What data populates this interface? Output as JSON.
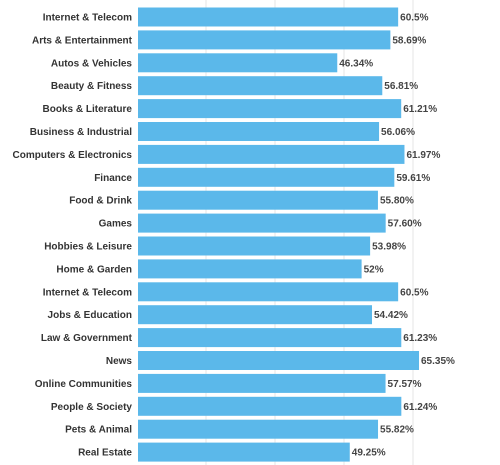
{
  "chart_data": {
    "type": "bar",
    "orientation": "horizontal",
    "categories": [
      "Internet & Telecom",
      "Arts & Entertainment",
      "Autos & Vehicles",
      "Beauty & Fitness",
      "Books & Literature",
      "Business & Industrial",
      "Computers & Electronics",
      "Finance",
      "Food & Drink",
      "Games",
      "Hobbies & Leisure",
      "Home & Garden",
      "Internet & Telecom",
      "Jobs & Education",
      "Law & Government",
      "News",
      "Online Communities",
      "People & Society",
      "Pets & Animal",
      "Real Estate"
    ],
    "values": [
      60.5,
      58.69,
      46.34,
      56.81,
      61.21,
      56.06,
      61.97,
      59.61,
      55.8,
      57.6,
      53.98,
      52,
      60.5,
      54.42,
      61.23,
      65.35,
      57.57,
      61.24,
      55.82,
      49.25
    ],
    "value_labels": [
      "60.5%",
      "58.69%",
      "46.34%",
      "56.81%",
      "61.21%",
      "56.06%",
      "61.97%",
      "59.61%",
      "55.80%",
      "57.60%",
      "53.98%",
      "52%",
      "60.5%",
      "54.42%",
      "61.23%",
      "65.35%",
      "57.57%",
      "61.24%",
      "55.82%",
      "49.25%"
    ],
    "grid": true,
    "bar_color": "#5bb8ea"
  }
}
